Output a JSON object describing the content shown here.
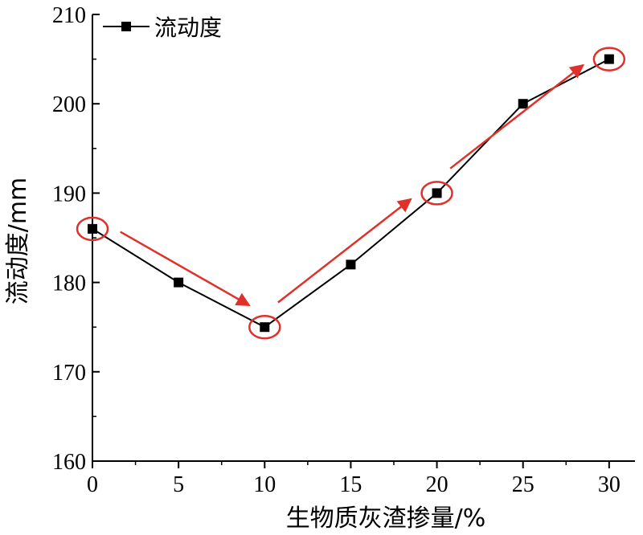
{
  "chart_data": {
    "type": "line",
    "x": [
      0,
      5,
      10,
      15,
      20,
      25,
      30
    ],
    "series": [
      {
        "name": "流动度",
        "values": [
          186,
          180,
          175,
          182,
          190,
          200,
          205
        ]
      }
    ],
    "xlabel": "生物质灰渣掺量/%",
    "ylabel": "流动度/mm",
    "xlim": [
      0,
      31.5
    ],
    "ylim": [
      160,
      210
    ],
    "xticks": [
      0,
      5,
      10,
      15,
      20,
      25,
      30
    ],
    "yticks": [
      160,
      170,
      180,
      190,
      200,
      210
    ],
    "legend": "top-left",
    "grid": false,
    "highlighted_x": [
      0,
      10,
      20,
      30
    ],
    "trend_arrows": [
      {
        "from": [
          0,
          186
        ],
        "to": [
          10,
          175
        ]
      },
      {
        "from": [
          10,
          175
        ],
        "to": [
          20,
          190
        ]
      },
      {
        "from": [
          20,
          190
        ],
        "to": [
          30,
          205
        ]
      }
    ],
    "colors": {
      "series": "#000000",
      "highlight": "#e0302a"
    }
  }
}
